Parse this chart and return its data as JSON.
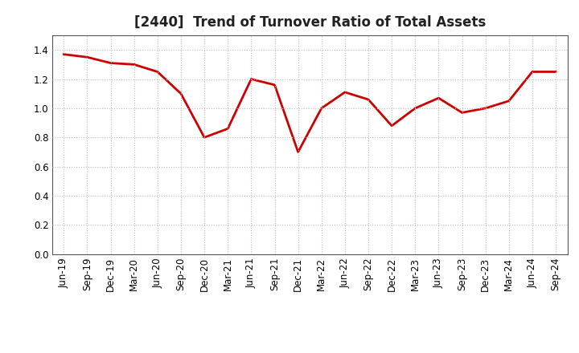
{
  "title": "[2440]  Trend of Turnover Ratio of Total Assets",
  "x_labels": [
    "Jun-19",
    "Sep-19",
    "Dec-19",
    "Mar-20",
    "Jun-20",
    "Sep-20",
    "Dec-20",
    "Mar-21",
    "Jun-21",
    "Sep-21",
    "Dec-21",
    "Mar-22",
    "Jun-22",
    "Sep-22",
    "Dec-22",
    "Mar-23",
    "Jun-23",
    "Sep-23",
    "Dec-23",
    "Mar-24",
    "Jun-24",
    "Sep-24"
  ],
  "y_values": [
    1.37,
    1.35,
    1.31,
    1.3,
    1.25,
    1.1,
    0.8,
    0.86,
    1.2,
    1.16,
    0.7,
    1.0,
    1.11,
    1.06,
    0.88,
    1.0,
    1.07,
    0.97,
    1.0,
    1.05,
    1.25,
    1.25
  ],
  "line_color": "#cc0000",
  "line_width": 2.0,
  "ylim": [
    0.0,
    1.5
  ],
  "yticks": [
    0.0,
    0.2,
    0.4,
    0.6,
    0.8,
    1.0,
    1.2,
    1.4
  ],
  "grid_color": "#bbbbbb",
  "grid_linestyle": ":",
  "bg_color": "#ffffff",
  "title_fontsize": 12,
  "tick_fontsize": 8.5,
  "title_color": "#222222",
  "spine_color": "#555555"
}
